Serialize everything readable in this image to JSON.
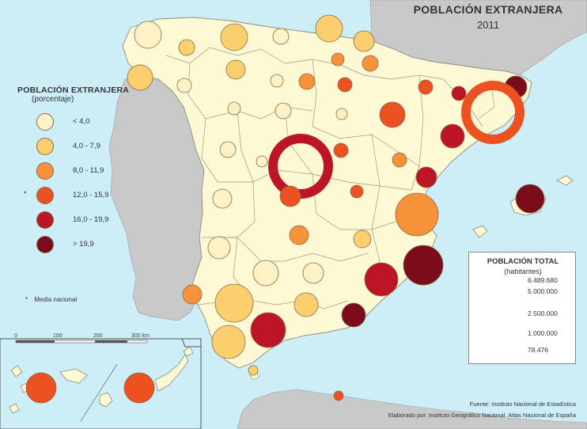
{
  "title": {
    "main": "POBLACIÓN EXTRANJERA",
    "year": "2011"
  },
  "legend": {
    "title": "POBLACIÓN EXTRANJERA",
    "subtitle": "(porcentaje)",
    "items": [
      {
        "label": "< 4,0",
        "color": "#fdf1c6"
      },
      {
        "label": "4,0 - 7,9",
        "color": "#fbcf6d"
      },
      {
        "label": "8,0 - 11,9",
        "color": "#f6923a"
      },
      {
        "label": "12,0 - 15,9",
        "color": "#ec5221"
      },
      {
        "label": "16,0 - 19,9",
        "color": "#bc1526"
      },
      {
        "label": "> 19,9",
        "color": "#7a0c1c"
      }
    ],
    "national_marker": "*",
    "national_label": "Media nacional"
  },
  "scale_bar": {
    "labels": [
      "0",
      "100",
      "200",
      "300 km"
    ]
  },
  "population_legend": {
    "title": "POBLACIÓN TOTAL",
    "subtitle": "(habitantes)",
    "values": [
      "6.489.680",
      "5.000.000",
      "2.500.000",
      "1.000.000",
      "78.476"
    ]
  },
  "credits": {
    "source": "Fuente: Instituto Nacional de Estadística",
    "author": "Elaborado por: Instituto Geográfico Nacional. Atlas Nacional de España"
  },
  "colors": {
    "sea": "#cdeef7",
    "spain_land": "#fdf9d4",
    "foreign_land": "#c9c9c9",
    "province_border": "#8c8c7a"
  }
}
